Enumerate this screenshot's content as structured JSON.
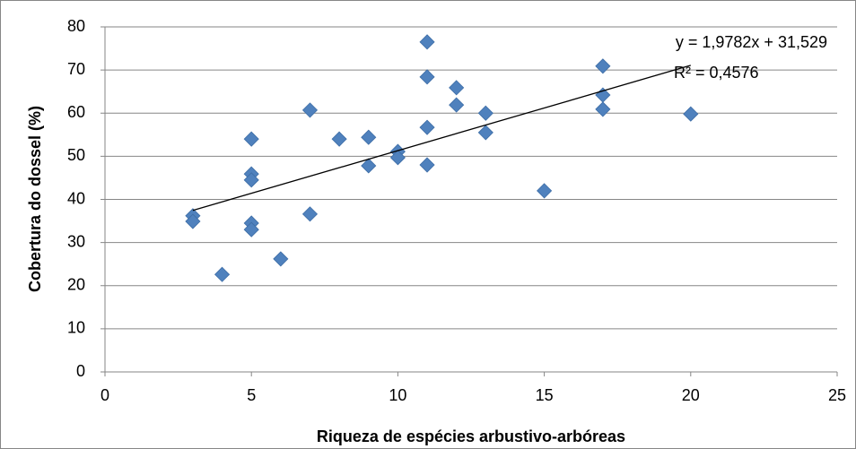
{
  "chart_data": {
    "type": "scatter",
    "x_label": "Riqueza de espécies arbustivo-arbóreas",
    "y_label": "Cobertura do dossel (%)",
    "x": [
      3,
      3,
      4,
      5,
      5,
      5,
      5,
      5,
      6,
      7,
      7,
      8,
      9,
      9,
      10,
      10,
      11,
      11,
      11,
      11,
      12,
      12,
      13,
      13,
      15,
      17,
      17,
      17,
      20
    ],
    "values": [
      36.2,
      34.9,
      22.6,
      54.0,
      45.9,
      44.5,
      34.5,
      33.0,
      26.2,
      60.7,
      36.6,
      54.0,
      54.4,
      47.8,
      51.1,
      49.7,
      76.5,
      68.4,
      56.7,
      48.0,
      65.9,
      61.9,
      60.0,
      55.5,
      42.0,
      70.9,
      64.2,
      60.9,
      59.8
    ],
    "color": "#4f81bd",
    "xlim": [
      0,
      25
    ],
    "xticks": [
      0,
      5,
      10,
      15,
      20,
      25
    ],
    "ylim": [
      0,
      80
    ],
    "yticks": [
      0,
      10,
      20,
      30,
      40,
      50,
      60,
      70,
      80
    ],
    "grid": true,
    "trendline": {
      "slope": 1.9782,
      "intercept": 31.529,
      "x_range": [
        3,
        20
      ],
      "label": "y = 1,9782x + 31,529",
      "r2_label": "R² = 0,4576"
    }
  }
}
